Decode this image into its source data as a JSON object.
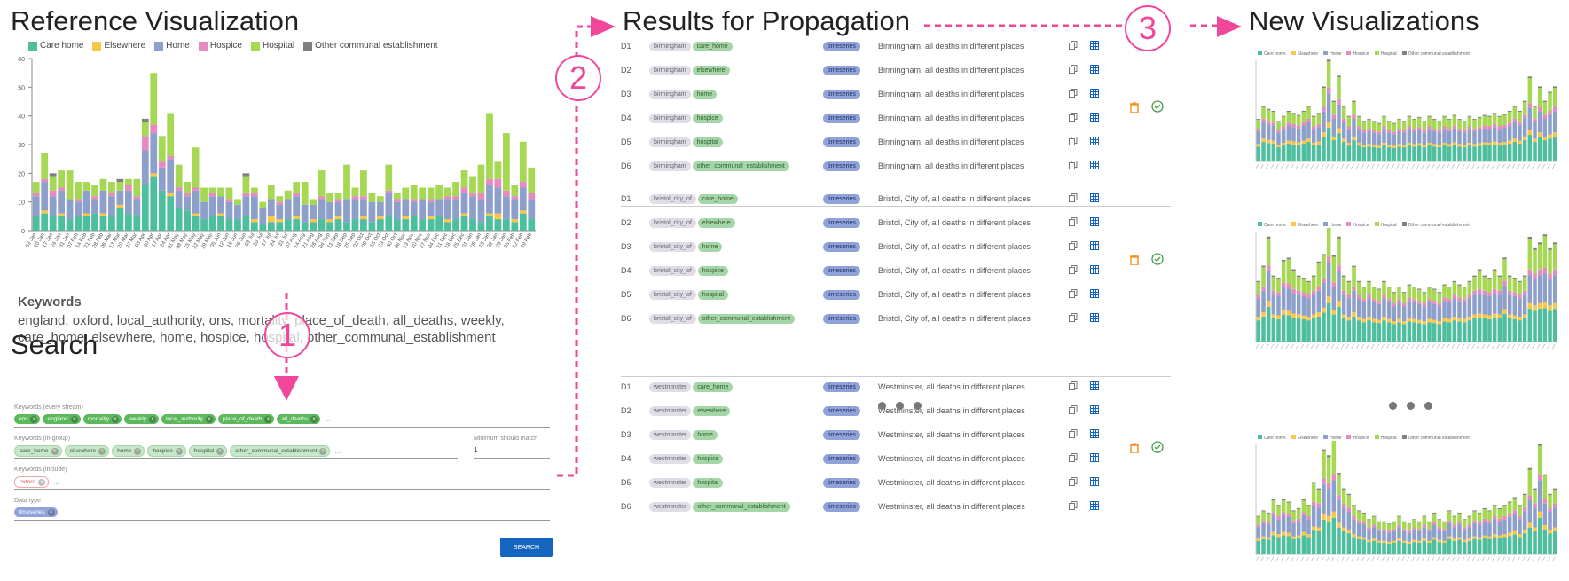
{
  "titles": {
    "reference": "Reference Visualization",
    "search": "Search",
    "results": "Results for Propagation",
    "new": "New Visualizations"
  },
  "steps": [
    "1",
    "2",
    "3"
  ],
  "legend": [
    {
      "label": "Care home",
      "color": "#4dbf9f"
    },
    {
      "label": "Elsewhere",
      "color": "#f7c64a"
    },
    {
      "label": "Home",
      "color": "#8da0cb"
    },
    {
      "label": "Hospice",
      "color": "#e78ac3"
    },
    {
      "label": "Hospital",
      "color": "#a6d854"
    },
    {
      "label": "Other communal establishment",
      "color": "#808080"
    }
  ],
  "mini_legend": [
    "Care home",
    "Elsewhere",
    "Home",
    "Hospice",
    "Hospital",
    "Other communal establishment"
  ],
  "keywords": {
    "title": "Keywords",
    "line1": "england, oxford, local_authority, ons, mortality, place_of_death, all_deaths, weekly,",
    "line2": "care_home, elsewhere, home, hospice, hospital, other_communal_establishment"
  },
  "search": {
    "every_label": "Keywords (every stream)",
    "every": [
      "ons",
      "england",
      "mortality",
      "weekly",
      "local_authority",
      "place_of_death",
      "all_deaths"
    ],
    "group_label": "Keywords (in-group)",
    "group": [
      "care_home",
      "elsewhere",
      "home",
      "hospice",
      "hospital",
      "other_communal_establishment"
    ],
    "min_label": "Minimum should match",
    "min_value": "1",
    "include_label": "Keywords (include)",
    "include": [
      "oxford"
    ],
    "type_label": "Data type",
    "type": [
      "timeseries"
    ],
    "button": "SEARCH",
    "ellipsis": "..."
  },
  "results": {
    "ts_label": "timeseries",
    "groups": [
      {
        "place": "birmingham",
        "desc": "Birmingham, all deaths in different places"
      },
      {
        "place": "bristol_city_of",
        "desc": "Bristol, City of, all deaths in different places"
      },
      {
        "place": "westminster",
        "desc": "Westminster, all deaths in different places"
      }
    ],
    "ids": [
      "D1",
      "D2",
      "D3",
      "D4",
      "D5",
      "D6"
    ],
    "fields": [
      "care_home",
      "elsewhere",
      "home",
      "hospice",
      "hospital",
      "other_communal_establishment"
    ]
  },
  "chart_data": [
    {
      "type": "bar",
      "stacked": true,
      "ylim": [
        0,
        60
      ],
      "yticks": [
        0,
        10,
        20,
        30,
        40,
        50,
        60
      ],
      "categories": [
        "03 Jan",
        "10 Jan",
        "17 Jan",
        "24 Jan",
        "31 Jan",
        "07 Feb",
        "14 Feb",
        "21 Feb",
        "28 Feb",
        "06 Mar",
        "13 Mar",
        "20 Mar",
        "27 Mar",
        "03 Apr",
        "10 Apr",
        "17 Apr",
        "24 Apr",
        "01 May",
        "08 May",
        "15 May",
        "22 May",
        "29 May",
        "05 Jun",
        "12 Jun",
        "19 Jun",
        "26 Jun",
        "03 Jul",
        "10 Jul",
        "17 Jul",
        "24 Jul",
        "31 Jul",
        "07 Aug",
        "14 Aug",
        "21 Aug",
        "28 Aug",
        "04 Sep",
        "11 Sep",
        "18 Sep",
        "25 Sep",
        "02 Oct",
        "09 Oct",
        "16 Oct",
        "23 Oct",
        "30 Oct",
        "06 Nov",
        "13 Nov",
        "20 Nov",
        "27 Nov",
        "04 Dec",
        "11 Dec",
        "18 Dec",
        "25 Dec",
        "01 Jan",
        "08 Jan",
        "15 Jan",
        "22 Jan",
        "29 Jan",
        "05 Feb",
        "12 Feb",
        "19 Feb"
      ],
      "series": [
        {
          "name": "Care home",
          "values": [
            5,
            6,
            5,
            5,
            4,
            5,
            5,
            6,
            5,
            5,
            8,
            6,
            5,
            16,
            19,
            14,
            12,
            8,
            7,
            5,
            4,
            5,
            5,
            4,
            4,
            5,
            3,
            2,
            3,
            3,
            4,
            4,
            3,
            3,
            4,
            3,
            4,
            3,
            4,
            4,
            3,
            4,
            5,
            4,
            4,
            5,
            4,
            4,
            5,
            3,
            4,
            5,
            4,
            3,
            5,
            4,
            4,
            3,
            6,
            4
          ]
        },
        {
          "name": "Elsewhere",
          "values": [
            0,
            1,
            0,
            1,
            0,
            0,
            1,
            0,
            1,
            0,
            1,
            0,
            0,
            0,
            1,
            0,
            1,
            0,
            0,
            1,
            0,
            0,
            1,
            0,
            0,
            0,
            1,
            0,
            2,
            1,
            0,
            1,
            0,
            1,
            0,
            1,
            1,
            0,
            0,
            1,
            0,
            1,
            0,
            0,
            1,
            0,
            0,
            1,
            0,
            1,
            0,
            1,
            0,
            0,
            1,
            2,
            0,
            1,
            1,
            0
          ]
        },
        {
          "name": "Home",
          "values": [
            7,
            10,
            7,
            8,
            7,
            5,
            8,
            5,
            8,
            7,
            5,
            8,
            6,
            12,
            14,
            8,
            12,
            6,
            5,
            8,
            6,
            7,
            6,
            6,
            5,
            7,
            8,
            6,
            6,
            5,
            7,
            7,
            6,
            5,
            7,
            6,
            5,
            8,
            7,
            6,
            7,
            5,
            8,
            6,
            6,
            5,
            7,
            5,
            6,
            7,
            7,
            7,
            8,
            8,
            10,
            9,
            8,
            7,
            8,
            7
          ]
        },
        {
          "name": "Hospice",
          "values": [
            1,
            1,
            2,
            1,
            0,
            1,
            0,
            1,
            0,
            1,
            0,
            2,
            1,
            5,
            3,
            2,
            1,
            1,
            1,
            1,
            0,
            1,
            0,
            1,
            0,
            1,
            1,
            0,
            0,
            1,
            0,
            1,
            0,
            0,
            1,
            0,
            1,
            0,
            1,
            1,
            0,
            0,
            1,
            1,
            0,
            1,
            0,
            1,
            0,
            1,
            1,
            2,
            1,
            2,
            2,
            3,
            2,
            1,
            2,
            2
          ]
        },
        {
          "name": "Hospital",
          "values": [
            4,
            9,
            5,
            6,
            10,
            6,
            3,
            4,
            4,
            4,
            3,
            2,
            6,
            5,
            18,
            9,
            15,
            8,
            4,
            14,
            5,
            2,
            3,
            4,
            2,
            6,
            2,
            2,
            5,
            2,
            3,
            4,
            8,
            2,
            9,
            3,
            2,
            12,
            3,
            9,
            3,
            2,
            9,
            2,
            4,
            5,
            4,
            4,
            5,
            3,
            5,
            6,
            6,
            10,
            23,
            6,
            20,
            4,
            14,
            9
          ]
        },
        {
          "name": "Other communal establishment",
          "values": [
            0,
            0,
            1,
            0,
            0,
            0,
            0,
            0,
            0,
            0,
            1,
            0,
            0,
            1,
            0,
            0,
            0,
            0,
            0,
            0,
            0,
            0,
            0,
            0,
            0,
            1,
            0,
            0,
            0,
            0,
            0,
            0,
            0,
            0,
            0,
            0,
            0,
            0,
            0,
            0,
            0,
            0,
            0,
            0,
            0,
            0,
            0,
            0,
            0,
            0,
            0,
            0,
            0,
            0,
            0,
            0,
            0,
            0,
            0,
            0
          ]
        }
      ]
    }
  ]
}
